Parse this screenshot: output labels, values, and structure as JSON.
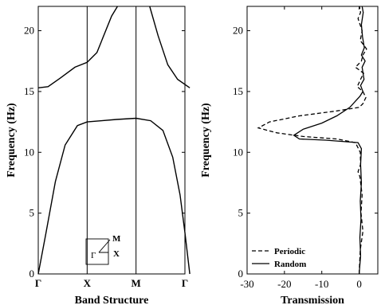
{
  "chart_data": [
    {
      "type": "line",
      "xlabel": "Band Structure",
      "ylabel": "Frequency (Hz)",
      "ylim": [
        0,
        22
      ],
      "xticks": [
        "Γ",
        "X",
        "M",
        "Γ"
      ],
      "yticks": [
        0,
        5,
        10,
        15,
        20
      ],
      "vlines_at": [
        "X",
        "M"
      ],
      "inset_labels": {
        "gamma": "Γ",
        "x": "X",
        "m": "M"
      },
      "series": [
        {
          "values": [
            [
              0,
              0
            ],
            [
              0.15,
              3.2
            ],
            [
              0.35,
              7.6
            ],
            [
              0.55,
              10.6
            ],
            [
              0.8,
              12.2
            ],
            [
              1,
              12.5
            ],
            [
              1.3,
              12.6
            ],
            [
              1.6,
              12.7
            ],
            [
              2,
              12.8
            ],
            [
              2.3,
              12.6
            ],
            [
              2.55,
              11.8
            ],
            [
              2.75,
              9.6
            ],
            [
              2.9,
              6.5
            ],
            [
              3,
              3.4
            ],
            [
              3.1,
              0
            ]
          ]
        },
        {
          "values": [
            [
              0,
              15.3
            ],
            [
              0.2,
              15.4
            ],
            [
              0.45,
              16.1
            ],
            [
              0.75,
              17.0
            ],
            [
              1,
              17.4
            ],
            [
              1.2,
              18.2
            ],
            [
              1.5,
              21.2
            ],
            [
              1.62,
              22
            ]
          ]
        },
        {
          "values": [
            [
              2.28,
              22
            ],
            [
              2.45,
              19.6
            ],
            [
              2.65,
              17.2
            ],
            [
              2.85,
              16.0
            ],
            [
              3.1,
              15.3
            ]
          ]
        }
      ]
    },
    {
      "type": "line",
      "xlabel": "Transmission",
      "ylabel": "Frequency (Hz)",
      "xlim": [
        -30,
        5
      ],
      "ylim": [
        0,
        22
      ],
      "xticks": [
        -30,
        -20,
        -10,
        0
      ],
      "yticks": [
        0,
        5,
        10,
        15,
        20
      ],
      "legend": {
        "position": "bottom-left"
      },
      "series": [
        {
          "name": "Periodic",
          "style": "dashed",
          "points": [
            [
              0,
              0
            ],
            [
              0.3,
              2
            ],
            [
              1,
              3.5
            ],
            [
              0.5,
              5
            ],
            [
              0.8,
              6.5
            ],
            [
              0.2,
              8
            ],
            [
              -0.3,
              8.4
            ],
            [
              0.4,
              9
            ],
            [
              0.3,
              10
            ],
            [
              -1,
              10.8
            ],
            [
              -6,
              11.1
            ],
            [
              -15,
              11.3
            ],
            [
              -22,
              11.6
            ],
            [
              -27,
              12
            ],
            [
              -24,
              12.5
            ],
            [
              -16,
              13
            ],
            [
              -6,
              13.4
            ],
            [
              0,
              13.7
            ],
            [
              1,
              14
            ],
            [
              1.8,
              14.5
            ],
            [
              1,
              15
            ],
            [
              -0.5,
              15.4
            ],
            [
              0.4,
              16
            ],
            [
              1.2,
              16.5
            ],
            [
              -1,
              17
            ],
            [
              0.6,
              17.5
            ],
            [
              1,
              18
            ],
            [
              2,
              18.5
            ],
            [
              0.3,
              19.2
            ],
            [
              0.8,
              20
            ],
            [
              -0.3,
              21
            ],
            [
              0.4,
              21.5
            ],
            [
              0.1,
              22
            ]
          ]
        },
        {
          "name": "Random",
          "style": "solid",
          "points": [
            [
              0,
              0
            ],
            [
              0.4,
              1.5
            ],
            [
              0.2,
              3
            ],
            [
              0.5,
              4.5
            ],
            [
              0.3,
              6
            ],
            [
              0.6,
              7.5
            ],
            [
              0.4,
              9
            ],
            [
              0.6,
              10.3
            ],
            [
              -0.3,
              10.8
            ],
            [
              -9,
              11
            ],
            [
              -16,
              11.1
            ],
            [
              -17.5,
              11.4
            ],
            [
              -15,
              11.9
            ],
            [
              -10,
              12.4
            ],
            [
              -6,
              13
            ],
            [
              -2.5,
              13.7
            ],
            [
              -1,
              14.2
            ],
            [
              0.2,
              14.6
            ],
            [
              1,
              15
            ],
            [
              0.4,
              15.5
            ],
            [
              1.3,
              16
            ],
            [
              0.8,
              17
            ],
            [
              1.6,
              17.5
            ],
            [
              0.6,
              18
            ],
            [
              1.4,
              18.6
            ],
            [
              0.9,
              19.5
            ],
            [
              0.6,
              20.5
            ],
            [
              1.1,
              21.5
            ],
            [
              0.8,
              22
            ]
          ]
        }
      ]
    }
  ]
}
